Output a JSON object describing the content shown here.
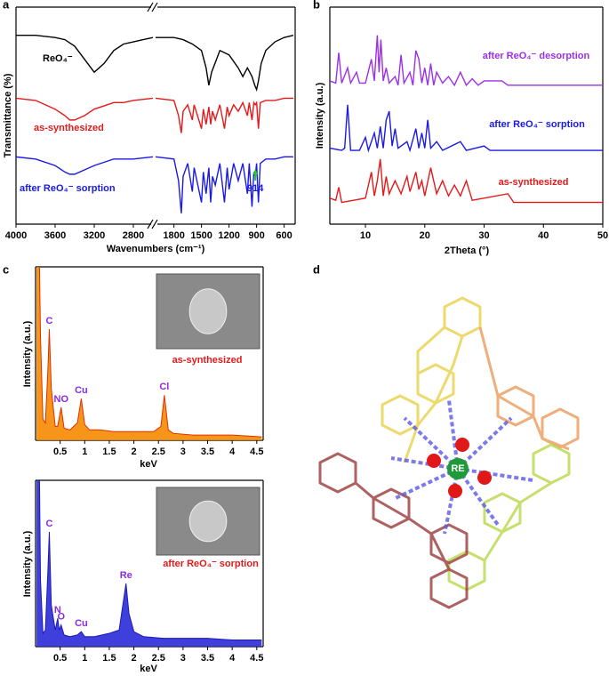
{
  "panels": [
    "a",
    "b",
    "c",
    "d"
  ],
  "chart_data": [
    {
      "type": "line",
      "xlabel": "Wavenumbers (cm⁻¹)",
      "ylabel": "Transmittance (%)",
      "x_segments": [
        [
          4000,
          2600
        ],
        [
          2000,
          480
        ]
      ],
      "xticks": [
        4000,
        3600,
        3200,
        2800,
        1800,
        1500,
        1200,
        900,
        600
      ],
      "ylim": [
        0,
        100
      ],
      "annotation": {
        "text": "914",
        "x": 914,
        "color": "#22cc22"
      },
      "series": [
        {
          "name": "ReO₄⁻",
          "color": "#000000",
          "x": [
            4000,
            3800,
            3600,
            3500,
            3400,
            3300,
            3200,
            3100,
            3000,
            2900,
            2800,
            2700,
            2600,
            2300,
            2000,
            1800,
            1700,
            1600,
            1500,
            1450,
            1420,
            1390,
            1300,
            1200,
            1100,
            1050,
            1000,
            950,
            920,
            900,
            880,
            850,
            800,
            700,
            600,
            500
          ],
          "values": [
            87,
            87,
            86,
            85,
            82,
            76,
            70,
            74,
            80,
            83,
            84,
            85,
            86,
            null,
            86,
            86,
            85,
            83,
            80,
            72,
            64,
            70,
            80,
            78,
            72,
            68,
            72,
            68,
            64,
            62,
            66,
            74,
            80,
            84,
            86,
            87
          ]
        },
        {
          "name": "as-synthesized",
          "color": "#e41a1a",
          "x": [
            4000,
            3800,
            3600,
            3500,
            3450,
            3400,
            3300,
            3200,
            3000,
            2900,
            2800,
            2600,
            2300,
            2000,
            1800,
            1750,
            1720,
            1700,
            1650,
            1600,
            1580,
            1500,
            1480,
            1450,
            1420,
            1400,
            1380,
            1350,
            1300,
            1250,
            1220,
            1200,
            1150,
            1100,
            1050,
            1000,
            980,
            950,
            930,
            914,
            900,
            880,
            860,
            800,
            700,
            600,
            500
          ],
          "values": [
            58,
            57,
            53,
            50,
            48,
            48,
            50,
            53,
            56,
            56,
            57,
            58,
            null,
            58,
            57,
            50,
            42,
            52,
            55,
            48,
            55,
            44,
            53,
            46,
            54,
            46,
            52,
            48,
            55,
            44,
            54,
            50,
            55,
            52,
            56,
            50,
            56,
            48,
            56,
            55,
            56,
            44,
            56,
            57,
            57,
            58,
            58
          ]
        },
        {
          "name": "after ReO₄⁻ sorption",
          "color": "#1a1ae6",
          "x": [
            4000,
            3800,
            3600,
            3500,
            3450,
            3400,
            3300,
            3200,
            3000,
            2800,
            2600,
            2300,
            2000,
            1800,
            1750,
            1720,
            1700,
            1650,
            1600,
            1580,
            1500,
            1480,
            1450,
            1420,
            1400,
            1380,
            1350,
            1300,
            1250,
            1220,
            1200,
            1150,
            1100,
            1050,
            1000,
            980,
            950,
            930,
            914,
            900,
            880,
            860,
            800,
            700,
            600,
            500
          ],
          "values": [
            31,
            30,
            27,
            24,
            23,
            23,
            25,
            27,
            30,
            30,
            31,
            null,
            31,
            30,
            20,
            5,
            22,
            28,
            15,
            26,
            10,
            24,
            14,
            26,
            10,
            22,
            18,
            28,
            10,
            26,
            16,
            28,
            20,
            28,
            14,
            28,
            8,
            24,
            22,
            28,
            10,
            28,
            30,
            30,
            31,
            31
          ]
        }
      ]
    },
    {
      "type": "line",
      "xlabel": "2Theta (°)",
      "ylabel": "Intensity (a.u.)",
      "xlim": [
        4,
        50
      ],
      "xticks": [
        10,
        20,
        30,
        40,
        50
      ],
      "ylim": [
        0,
        100
      ],
      "series": [
        {
          "name": "after ReO₄⁻ desorption",
          "color": "#9b30e6",
          "x": [
            4,
            5,
            5.5,
            6,
            7,
            7.5,
            8.5,
            9,
            10,
            11,
            11.5,
            12,
            12.3,
            12.6,
            13,
            13.5,
            14,
            15,
            15.5,
            16,
            16.5,
            17.5,
            18,
            18.5,
            19,
            19.5,
            20,
            20.5,
            21,
            21.5,
            22,
            23,
            24,
            25,
            26,
            27,
            28,
            29,
            30,
            33,
            34,
            40,
            50
          ],
          "values": [
            66,
            65,
            79,
            65,
            72,
            65,
            70,
            65,
            65,
            76,
            66,
            87,
            70,
            85,
            66,
            72,
            65,
            68,
            64,
            78,
            65,
            70,
            64,
            80,
            76,
            65,
            72,
            64,
            74,
            64,
            70,
            65,
            68,
            64,
            70,
            64,
            67,
            64,
            66,
            66,
            64,
            64,
            64
          ]
        },
        {
          "name": "after ReO₄⁻ sorption",
          "color": "#1a1ae6",
          "x": [
            4,
            6,
            6.5,
            7,
            7.5,
            9,
            10,
            10.5,
            11.5,
            12,
            12.5,
            13,
            13.5,
            14,
            14.5,
            15,
            15.5,
            17,
            17.5,
            18.5,
            19,
            19.5,
            20,
            20.5,
            21,
            22,
            23,
            26,
            27,
            30,
            31,
            40,
            50
          ],
          "values": [
            35,
            34,
            35,
            55,
            34,
            34,
            40,
            34,
            42,
            35,
            45,
            35,
            48,
            52,
            36,
            44,
            35,
            38,
            34,
            44,
            35,
            42,
            35,
            48,
            35,
            38,
            34,
            38,
            34,
            36,
            34,
            34,
            34
          ]
        },
        {
          "name": "as-synthesized",
          "color": "#e41a1a",
          "x": [
            4,
            5,
            5.5,
            6,
            8,
            10,
            11,
            11.5,
            12,
            12.5,
            13,
            13.5,
            14,
            15,
            16,
            17,
            17.5,
            18.5,
            19,
            19.5,
            20,
            21,
            22,
            23,
            24,
            25,
            26,
            27,
            28,
            34,
            35,
            40,
            50
          ],
          "values": [
            12,
            11,
            17,
            10,
            11,
            12,
            24,
            13,
            20,
            30,
            13,
            22,
            14,
            20,
            14,
            22,
            15,
            24,
            16,
            20,
            13,
            26,
            14,
            20,
            13,
            18,
            13,
            20,
            11,
            14,
            10,
            10,
            10
          ]
        }
      ]
    },
    {
      "type": "area",
      "xlabel": "keV",
      "ylabel": "Intensity (a.u.)",
      "xlim": [
        0,
        4.63
      ],
      "xticks": [
        0.5,
        1,
        1.5,
        2,
        2.5,
        3,
        3.5,
        4,
        4.5
      ],
      "ylim": [
        0,
        100
      ],
      "peak_labels": [
        {
          "text": "C",
          "x": 0.28
        },
        {
          "text": "NO",
          "x": 0.52
        },
        {
          "text": "Cu",
          "x": 0.93
        },
        {
          "text": "Cl",
          "x": 2.62
        }
      ],
      "series": [
        {
          "name": "as-synthesized",
          "color": "#f58a00",
          "x": [
            0.02,
            0.08,
            0.1,
            0.15,
            0.2,
            0.25,
            0.28,
            0.32,
            0.4,
            0.45,
            0.52,
            0.58,
            0.7,
            0.85,
            0.93,
            1.0,
            1.1,
            1.3,
            1.6,
            2.0,
            2.4,
            2.55,
            2.62,
            2.7,
            2.8,
            3.2,
            3.6,
            4.0,
            4.6
          ],
          "values": [
            100,
            100,
            60,
            12,
            10,
            40,
            64,
            30,
            8,
            8,
            19,
            7,
            6,
            10,
            24,
            9,
            6,
            6,
            5,
            5,
            5,
            8,
            26,
            6,
            4,
            3,
            3,
            3,
            2
          ]
        }
      ]
    },
    {
      "type": "area",
      "xlabel": "keV",
      "ylabel": "Intensity (a.u.)",
      "xlim": [
        0,
        4.63
      ],
      "xticks": [
        0.5,
        1,
        1.5,
        2,
        2.5,
        3,
        3.5,
        4,
        4.5
      ],
      "ylim": [
        0,
        100
      ],
      "peak_labels": [
        {
          "text": "C",
          "x": 0.28
        },
        {
          "text": "N",
          "x": 0.45
        },
        {
          "text": "O",
          "x": 0.52
        },
        {
          "text": "Cu",
          "x": 0.93
        },
        {
          "text": "Re",
          "x": 1.84
        }
      ],
      "series": [
        {
          "name": "after ReO₄⁻ sorption",
          "color": "#2a2ad8",
          "x": [
            0.02,
            0.08,
            0.1,
            0.15,
            0.2,
            0.25,
            0.28,
            0.32,
            0.4,
            0.45,
            0.48,
            0.52,
            0.58,
            0.7,
            0.85,
            0.93,
            1.0,
            1.2,
            1.5,
            1.7,
            1.8,
            1.84,
            1.9,
            2.0,
            2.2,
            2.6,
            3.0,
            3.5,
            4.0,
            4.6
          ],
          "values": [
            100,
            100,
            40,
            8,
            10,
            45,
            69,
            25,
            10,
            17,
            10,
            13,
            7,
            6,
            7,
            9,
            6,
            6,
            8,
            10,
            30,
            38,
            20,
            9,
            6,
            5,
            5,
            5,
            4,
            4
          ]
        }
      ]
    }
  ],
  "structure": {
    "center_label": "RE"
  }
}
